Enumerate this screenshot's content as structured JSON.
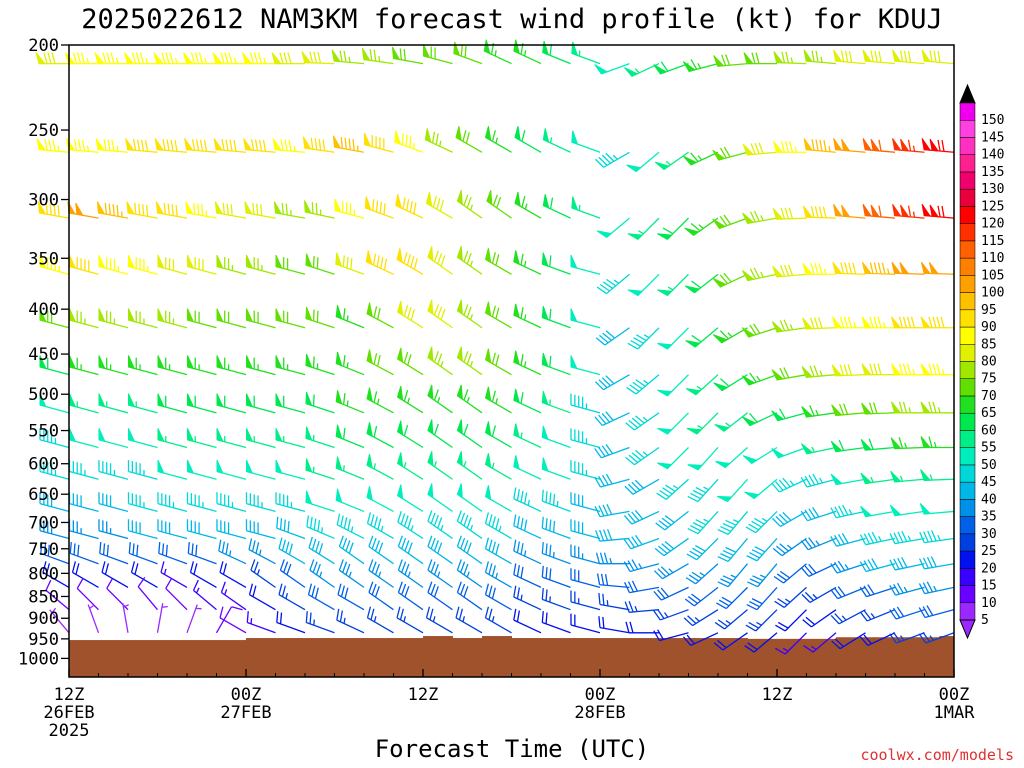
{
  "chart_data": {
    "type": "wind-barb-time-height",
    "title": "2025022612 NAM3KM forecast wind profile (kt) for KDUJ",
    "xlabel": "Forecast Time (UTC)",
    "credit": "coolwx.com/models",
    "units": "kt",
    "y_axis": {
      "quantity": "pressure (hPa)",
      "ticks": [
        200,
        250,
        300,
        350,
        400,
        450,
        500,
        550,
        600,
        650,
        700,
        750,
        800,
        850,
        900,
        950,
        1000
      ],
      "tick_labels": [
        "200",
        "250",
        "300",
        "350",
        "400",
        "450",
        "500",
        "550",
        "600",
        "650",
        "700",
        "750",
        "800",
        "850",
        "900",
        "950",
        "1000"
      ],
      "range": [
        200,
        1050
      ],
      "scale": "log",
      "inverted": true
    },
    "x_axis": {
      "range_hours": [
        0,
        60
      ],
      "ticks": [
        {
          "hour": 0,
          "lines": [
            "12Z",
            "26FEB",
            "2025"
          ]
        },
        {
          "hour": 12,
          "lines": [
            "00Z",
            "27FEB"
          ]
        },
        {
          "hour": 24,
          "lines": [
            "12Z"
          ]
        },
        {
          "hour": 36,
          "lines": [
            "00Z",
            "28FEB"
          ]
        },
        {
          "hour": 48,
          "lines": [
            "12Z"
          ]
        },
        {
          "hour": 60,
          "lines": [
            "00Z",
            "1MAR"
          ]
        }
      ]
    },
    "colorbar": {
      "levels": [
        5,
        10,
        15,
        20,
        25,
        30,
        35,
        40,
        45,
        50,
        55,
        60,
        65,
        70,
        75,
        80,
        85,
        90,
        95,
        100,
        105,
        110,
        115,
        120,
        125,
        130,
        135,
        140,
        145,
        150
      ],
      "colors": [
        "#9b28ff",
        "#6a00ff",
        "#3a00ff",
        "#0010ee",
        "#0040e0",
        "#0060e8",
        "#0090e8",
        "#00b8e8",
        "#00d8d8",
        "#00eebb",
        "#00ee88",
        "#00e850",
        "#20e020",
        "#60e000",
        "#a0e800",
        "#e0f000",
        "#ffff00",
        "#ffe000",
        "#ffc000",
        "#ffa000",
        "#ff8000",
        "#ff6000",
        "#ff3000",
        "#ff0000",
        "#e8003c",
        "#f0006c",
        "#ff2090",
        "#ff30c0",
        "#ff40e0",
        "#ee00ee"
      ],
      "extend": "both",
      "tick_labels": [
        "5",
        "10",
        "15",
        "20",
        "25",
        "30",
        "35",
        "40",
        "45",
        "50",
        "55",
        "60",
        "65",
        "70",
        "75",
        "80",
        "85",
        "90",
        "95",
        "100",
        "105",
        "110",
        "115",
        "120",
        "125",
        "130",
        "135",
        "140",
        "145",
        "150"
      ]
    },
    "barb_times_hours": [
      0,
      2,
      4,
      6,
      8,
      10,
      12,
      14,
      16,
      18,
      20,
      22,
      24,
      26,
      28,
      30,
      32,
      34,
      36,
      38,
      40,
      42,
      44,
      46,
      48,
      50,
      52,
      54,
      56,
      58,
      60
    ],
    "wind_levels": [
      {
        "p": 210,
        "dir": [
          270,
          270,
          270,
          270,
          270,
          270,
          270,
          270,
          270,
          272,
          275,
          278,
          280,
          285,
          290,
          295,
          295,
          292,
          290,
          250,
          245,
          250,
          255,
          265,
          270,
          272,
          275,
          275,
          275,
          275,
          275
        ],
        "spd": [
          80,
          85,
          85,
          85,
          85,
          85,
          85,
          85,
          80,
          80,
          75,
          75,
          70,
          70,
          70,
          65,
          65,
          60,
          55,
          50,
          55,
          60,
          65,
          70,
          70,
          75,
          75,
          80,
          80,
          80,
          80
        ]
      },
      {
        "p": 265,
        "dir": [
          275,
          275,
          275,
          275,
          275,
          275,
          275,
          275,
          275,
          278,
          280,
          285,
          290,
          295,
          300,
          300,
          300,
          295,
          290,
          240,
          230,
          235,
          245,
          255,
          265,
          270,
          275,
          275,
          275,
          275,
          275
        ],
        "spd": [
          85,
          85,
          85,
          90,
          90,
          90,
          90,
          90,
          85,
          90,
          95,
          90,
          85,
          75,
          70,
          65,
          60,
          55,
          50,
          45,
          50,
          55,
          65,
          70,
          80,
          85,
          95,
          100,
          110,
          115,
          120
        ]
      },
      {
        "p": 315,
        "dir": [
          280,
          280,
          280,
          280,
          280,
          280,
          280,
          280,
          280,
          282,
          285,
          290,
          295,
          300,
          305,
          305,
          300,
          295,
          290,
          230,
          225,
          225,
          235,
          250,
          260,
          268,
          272,
          275,
          275,
          275,
          275
        ],
        "spd": [
          90,
          100,
          95,
          90,
          90,
          85,
          80,
          80,
          75,
          75,
          85,
          90,
          90,
          80,
          75,
          70,
          65,
          60,
          55,
          50,
          55,
          60,
          65,
          70,
          75,
          80,
          90,
          100,
          110,
          115,
          120
        ]
      },
      {
        "p": 365,
        "dir": [
          285,
          285,
          285,
          285,
          285,
          285,
          285,
          285,
          285,
          288,
          290,
          295,
          300,
          305,
          305,
          300,
          295,
          290,
          285,
          230,
          225,
          225,
          232,
          245,
          258,
          265,
          270,
          272,
          272,
          272,
          272
        ],
        "spd": [
          85,
          90,
          85,
          85,
          80,
          80,
          75,
          75,
          70,
          70,
          80,
          90,
          90,
          80,
          75,
          70,
          65,
          60,
          50,
          45,
          50,
          55,
          60,
          70,
          75,
          80,
          85,
          90,
          95,
          100,
          100
        ]
      },
      {
        "p": 420,
        "dir": [
          285,
          285,
          285,
          285,
          285,
          285,
          285,
          285,
          285,
          288,
          292,
          298,
          302,
          305,
          305,
          300,
          295,
          290,
          285,
          235,
          225,
          225,
          230,
          240,
          252,
          262,
          268,
          270,
          270,
          270,
          270
        ],
        "spd": [
          70,
          75,
          75,
          75,
          75,
          70,
          70,
          70,
          70,
          70,
          65,
          70,
          80,
          80,
          75,
          70,
          65,
          60,
          50,
          40,
          45,
          50,
          60,
          65,
          70,
          75,
          80,
          85,
          85,
          90,
          90
        ]
      },
      {
        "p": 475,
        "dir": [
          285,
          285,
          285,
          285,
          285,
          285,
          285,
          285,
          285,
          288,
          292,
          298,
          302,
          305,
          305,
          300,
          295,
          290,
          285,
          240,
          230,
          225,
          228,
          238,
          250,
          260,
          265,
          268,
          270,
          270,
          270
        ],
        "spd": [
          60,
          65,
          65,
          65,
          65,
          65,
          65,
          65,
          65,
          65,
          65,
          70,
          70,
          75,
          75,
          70,
          65,
          60,
          50,
          40,
          45,
          50,
          55,
          60,
          65,
          70,
          75,
          80,
          80,
          85,
          85
        ]
      },
      {
        "p": 525,
        "dir": [
          285,
          285,
          285,
          285,
          285,
          285,
          285,
          285,
          285,
          288,
          292,
          298,
          302,
          305,
          305,
          300,
          295,
          290,
          285,
          245,
          235,
          225,
          225,
          232,
          245,
          255,
          262,
          265,
          268,
          270,
          270
        ],
        "spd": [
          50,
          55,
          55,
          55,
          60,
          60,
          60,
          60,
          60,
          60,
          65,
          65,
          65,
          65,
          65,
          65,
          60,
          55,
          45,
          40,
          45,
          50,
          55,
          55,
          60,
          60,
          65,
          70,
          70,
          75,
          75
        ]
      },
      {
        "p": 575,
        "dir": [
          285,
          285,
          285,
          285,
          285,
          285,
          285,
          285,
          285,
          288,
          292,
          298,
          302,
          305,
          305,
          300,
          295,
          290,
          285,
          250,
          235,
          225,
          222,
          228,
          238,
          250,
          258,
          262,
          265,
          268,
          270
        ],
        "spd": [
          45,
          50,
          50,
          50,
          55,
          55,
          55,
          55,
          55,
          55,
          60,
          60,
          60,
          60,
          60,
          60,
          55,
          50,
          45,
          40,
          45,
          50,
          50,
          50,
          50,
          50,
          55,
          60,
          60,
          65,
          65
        ]
      },
      {
        "p": 625,
        "dir": [
          285,
          285,
          285,
          285,
          285,
          285,
          285,
          285,
          285,
          288,
          292,
          298,
          302,
          305,
          305,
          300,
          295,
          290,
          285,
          255,
          240,
          228,
          222,
          222,
          230,
          245,
          255,
          260,
          262,
          265,
          268
        ],
        "spd": [
          45,
          45,
          45,
          45,
          50,
          50,
          50,
          50,
          50,
          55,
          55,
          55,
          55,
          55,
          55,
          55,
          50,
          50,
          45,
          40,
          40,
          45,
          45,
          50,
          50,
          45,
          45,
          50,
          55,
          55,
          55
        ]
      },
      {
        "p": 680,
        "dir": [
          285,
          285,
          285,
          285,
          285,
          285,
          285,
          285,
          285,
          288,
          292,
          298,
          302,
          305,
          305,
          300,
          295,
          290,
          285,
          260,
          245,
          232,
          222,
          220,
          225,
          240,
          252,
          258,
          260,
          262,
          265
        ],
        "spd": [
          40,
          40,
          40,
          45,
          45,
          45,
          45,
          45,
          45,
          50,
          50,
          50,
          50,
          50,
          50,
          50,
          45,
          45,
          40,
          40,
          40,
          40,
          45,
          45,
          45,
          40,
          40,
          45,
          50,
          50,
          50
        ]
      },
      {
        "p": 730,
        "dir": [
          285,
          285,
          285,
          285,
          285,
          285,
          285,
          285,
          290,
          293,
          297,
          300,
          303,
          305,
          305,
          300,
          295,
          290,
          285,
          265,
          250,
          235,
          225,
          220,
          222,
          235,
          248,
          255,
          258,
          260,
          262
        ],
        "spd": [
          35,
          35,
          35,
          40,
          40,
          40,
          40,
          40,
          40,
          45,
          45,
          45,
          45,
          45,
          45,
          45,
          40,
          40,
          40,
          40,
          40,
          40,
          40,
          40,
          40,
          35,
          35,
          40,
          45,
          45,
          45
        ]
      },
      {
        "p": 780,
        "dir": [
          290,
          290,
          290,
          290,
          290,
          290,
          295,
          298,
          300,
          302,
          305,
          305,
          305,
          305,
          305,
          300,
          295,
          290,
          285,
          270,
          255,
          240,
          228,
          220,
          220,
          230,
          245,
          252,
          255,
          258,
          260
        ],
        "spd": [
          30,
          30,
          30,
          30,
          30,
          30,
          35,
          35,
          40,
          40,
          40,
          40,
          40,
          40,
          40,
          40,
          35,
          35,
          35,
          35,
          35,
          35,
          35,
          35,
          35,
          30,
          30,
          35,
          40,
          40,
          40
        ]
      },
      {
        "p": 830,
        "dir": [
          300,
          300,
          300,
          300,
          300,
          300,
          300,
          305,
          305,
          305,
          305,
          305,
          305,
          305,
          305,
          300,
          295,
          290,
          285,
          275,
          260,
          245,
          232,
          225,
          222,
          228,
          240,
          248,
          252,
          255,
          258
        ],
        "spd": [
          20,
          20,
          20,
          20,
          15,
          20,
          20,
          25,
          30,
          35,
          35,
          35,
          35,
          35,
          35,
          35,
          30,
          30,
          30,
          30,
          30,
          30,
          30,
          30,
          30,
          25,
          25,
          30,
          30,
          35,
          35
        ]
      },
      {
        "p": 880,
        "dir": [
          310,
          315,
          315,
          320,
          315,
          310,
          305,
          300,
          300,
          300,
          300,
          305,
          305,
          305,
          305,
          300,
          295,
          290,
          285,
          280,
          265,
          250,
          238,
          230,
          225,
          225,
          235,
          242,
          248,
          252,
          255
        ],
        "spd": [
          10,
          10,
          10,
          10,
          10,
          15,
          15,
          20,
          25,
          30,
          30,
          30,
          30,
          30,
          30,
          30,
          25,
          25,
          25,
          25,
          25,
          25,
          25,
          25,
          25,
          20,
          20,
          25,
          25,
          30,
          30
        ]
      },
      {
        "p": 935,
        "dir": [
          320,
          340,
          350,
          10,
          20,
          30,
          300,
          290,
          290,
          290,
          295,
          300,
          300,
          300,
          300,
          300,
          295,
          290,
          285,
          280,
          270,
          255,
          245,
          235,
          230,
          225,
          230,
          238,
          245,
          250,
          250
        ],
        "spd": [
          5,
          5,
          5,
          5,
          5,
          10,
          10,
          15,
          20,
          25,
          25,
          25,
          25,
          25,
          25,
          25,
          20,
          20,
          20,
          20,
          20,
          20,
          20,
          20,
          20,
          15,
          15,
          20,
          20,
          25,
          25
        ]
      }
    ],
    "terrain": {
      "color": "#a0522d",
      "segments": [
        {
          "h0": 0,
          "h1": 12,
          "p": 953
        },
        {
          "h0": 12,
          "h1": 24,
          "p": 948
        },
        {
          "h0": 24,
          "h1": 26,
          "p": 943
        },
        {
          "h0": 26,
          "h1": 28,
          "p": 948
        },
        {
          "h0": 28,
          "h1": 30,
          "p": 943
        },
        {
          "h0": 30,
          "h1": 46,
          "p": 948
        },
        {
          "h0": 46,
          "h1": 52,
          "p": 950
        },
        {
          "h0": 52,
          "h1": 59,
          "p": 946
        },
        {
          "h0": 59,
          "h1": 60,
          "p": 943
        }
      ]
    }
  }
}
